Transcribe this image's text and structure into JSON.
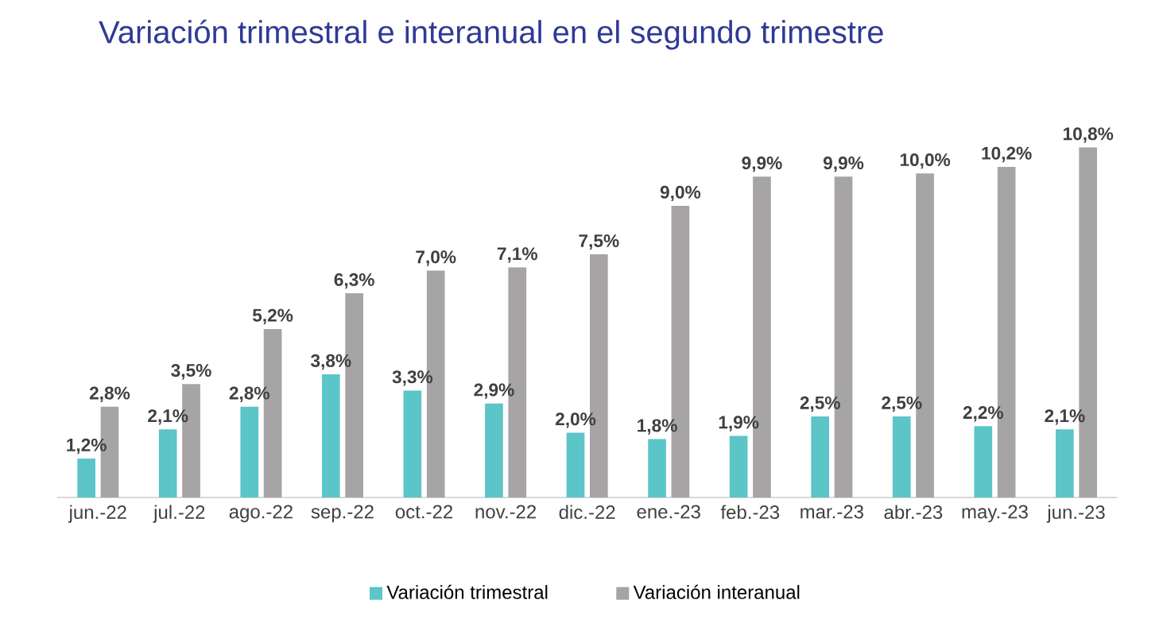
{
  "chart_data": {
    "type": "bar",
    "title": "Variación trimestral e interanual en el segundo trimestre",
    "categories": [
      "jun.-22",
      "jul.-22",
      "ago.-22",
      "sep.-22",
      "oct.-22",
      "nov.-22",
      "dic.-22",
      "ene.-23",
      "feb.-23",
      "mar.-23",
      "abr.-23",
      "may.-23",
      "jun.-23"
    ],
    "series": [
      {
        "name": "Variación trimestral",
        "color": "#5bc5c8",
        "values": [
          1.2,
          2.1,
          2.8,
          3.8,
          3.3,
          2.9,
          2.0,
          1.8,
          1.9,
          2.5,
          2.5,
          2.2,
          2.1
        ],
        "value_labels": [
          "1,2%",
          "2,1%",
          "2,8%",
          "3,8%",
          "3,3%",
          "2,9%",
          "2,0%",
          "1,8%",
          "1,9%",
          "2,5%",
          "2,5%",
          "2,2%",
          "2,1%"
        ]
      },
      {
        "name": "Variación interanual",
        "color": "#a6a4a4",
        "values": [
          2.8,
          3.5,
          5.2,
          6.3,
          7.0,
          7.1,
          7.5,
          9.0,
          9.9,
          9.9,
          10.0,
          10.2,
          10.8
        ],
        "value_labels": [
          "2,8%",
          "3,5%",
          "5,2%",
          "6,3%",
          "7,0%",
          "7,1%",
          "7,5%",
          "9,0%",
          "9,9%",
          "9,9%",
          "10,0%",
          "10,2%",
          "10,8%"
        ]
      }
    ],
    "legend": "bottom",
    "grid": false,
    "tick_labels": "x"
  }
}
